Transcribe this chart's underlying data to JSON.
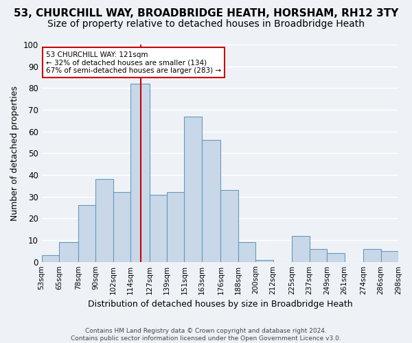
{
  "title": "53, CHURCHILL WAY, BROADBRIDGE HEATH, HORSHAM, RH12 3TY",
  "subtitle": "Size of property relative to detached houses in Broadbridge Heath",
  "xlabel": "Distribution of detached houses by size in Broadbridge Heath",
  "ylabel": "Number of detached properties",
  "footer1": "Contains HM Land Registry data © Crown copyright and database right 2024.",
  "footer2": "Contains public sector information licensed under the Open Government Licence v3.0.",
  "bins": [
    53,
    65,
    78,
    90,
    102,
    114,
    127,
    139,
    151,
    163,
    176,
    188,
    200,
    212,
    225,
    237,
    249,
    261,
    274,
    286,
    298
  ],
  "counts": [
    3,
    9,
    26,
    38,
    32,
    82,
    31,
    32,
    67,
    56,
    33,
    9,
    1,
    0,
    12,
    6,
    4,
    0,
    6,
    5
  ],
  "bar_color": "#c8d8e8",
  "bar_edge_color": "#6699bb",
  "vline_x": 121,
  "vline_color": "#cc0000",
  "annotation_line1": "53 CHURCHILL WAY: 121sqm",
  "annotation_line2": "← 32% of detached houses are smaller (134)",
  "annotation_line3": "67% of semi-detached houses are larger (283) →",
  "annotation_box_color": "#ffffff",
  "annotation_box_edge": "#cc0000",
  "ylim": [
    0,
    100
  ],
  "yticks": [
    0,
    10,
    20,
    30,
    40,
    50,
    60,
    70,
    80,
    90,
    100
  ],
  "background_color": "#eef2f7",
  "grid_color": "#ffffff",
  "title_fontsize": 11,
  "subtitle_fontsize": 10,
  "tick_label_fontsize": 7.5
}
